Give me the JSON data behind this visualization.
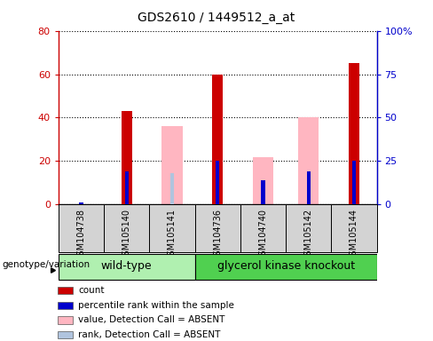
{
  "title": "GDS2610 / 1449512_a_at",
  "samples": [
    "GSM104738",
    "GSM105140",
    "GSM105141",
    "GSM104736",
    "GSM104740",
    "GSM105142",
    "GSM105144"
  ],
  "count_values": [
    0,
    43,
    0,
    60,
    0,
    0,
    65
  ],
  "percentile_rank": [
    1,
    19,
    0,
    25,
    14,
    19,
    25
  ],
  "absent_value": [
    0,
    0,
    36,
    0,
    22,
    40,
    0
  ],
  "absent_rank": [
    1,
    0,
    18,
    0,
    14,
    19,
    0
  ],
  "ylim_left": [
    0,
    80
  ],
  "ylim_right": [
    0,
    100
  ],
  "yticks_left": [
    0,
    20,
    40,
    60,
    80
  ],
  "yticks_right": [
    0,
    25,
    50,
    75,
    100
  ],
  "yticklabels_right": [
    "0",
    "25",
    "50",
    "75",
    "100%"
  ],
  "count_color": "#cc0000",
  "percentile_color": "#0000cc",
  "absent_value_color": "#ffb6c1",
  "absent_rank_color": "#b0c4de",
  "group_colors": {
    "wild-type": "#b0f0b0",
    "glycerol kinase knockout": "#50d050"
  },
  "sample_bg_color": "#d3d3d3",
  "wt_indices": [
    0,
    1,
    2
  ],
  "gk_indices": [
    3,
    4,
    5,
    6
  ],
  "legend_items": [
    {
      "label": "count",
      "color": "#cc0000"
    },
    {
      "label": "percentile rank within the sample",
      "color": "#0000cc"
    },
    {
      "label": "value, Detection Call = ABSENT",
      "color": "#ffb6c1"
    },
    {
      "label": "rank, Detection Call = ABSENT",
      "color": "#b0c4de"
    }
  ]
}
